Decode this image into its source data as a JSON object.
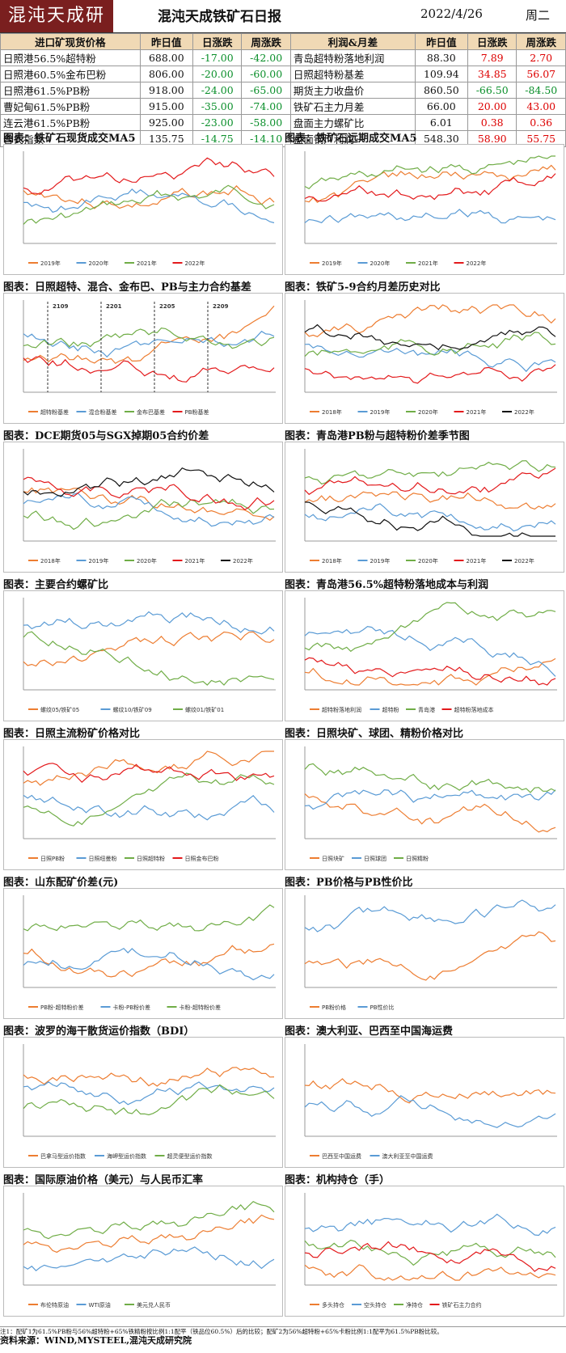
{
  "header": {
    "logo": "混沌天成研究院",
    "title": "混沌天成铁矿石日报",
    "date": "2022/4/26",
    "weekday": "周二"
  },
  "left_table": {
    "headers": [
      "进口矿现货价格",
      "昨日值",
      "日涨跌",
      "周涨跌"
    ],
    "rows": [
      [
        "日照港56.5%超特粉",
        "688.00",
        "-17.00",
        "-42.00"
      ],
      [
        "日照港60.5%金布巴粉",
        "806.00",
        "-20.00",
        "-60.00"
      ],
      [
        "日照港61.5%PB粉",
        "918.00",
        "-24.00",
        "-65.00"
      ],
      [
        "曹妃甸61.5%PB粉",
        "915.00",
        "-35.00",
        "-74.00"
      ],
      [
        "连云港61.5%PB粉",
        "925.00",
        "-23.00",
        "-58.00"
      ],
      [
        "普氏指数",
        "135.75",
        "-14.75",
        "-14.10"
      ]
    ]
  },
  "right_table": {
    "headers": [
      "利润&月差",
      "昨日值",
      "日涨跌",
      "周涨跌"
    ],
    "rows": [
      [
        "青岛超特粉落地利润",
        "88.30",
        "7.89",
        "2.70"
      ],
      [
        "日照超特粉基差",
        "109.94",
        "34.85",
        "56.07"
      ],
      [
        "期货主力收盘价",
        "860.50",
        "-66.50",
        "-84.50"
      ],
      [
        "铁矿石主力月差",
        "66.00",
        "20.00",
        "43.00"
      ],
      [
        "盘面主力螺矿比",
        "6.01",
        "0.38",
        "0.36"
      ],
      [
        "盘面钢厂利润",
        "548.30",
        "58.90",
        "55.75"
      ]
    ]
  },
  "charts": [
    {
      "caption": "图表：铁矿石现货成交MA5",
      "legend": [
        "2019年",
        "2020年",
        "2021年",
        "2022年"
      ]
    },
    {
      "caption": "图表：铁矿石远期成交MA5",
      "legend": [
        "2019年",
        "2020年",
        "2021年",
        "2022年"
      ]
    },
    {
      "caption": "图表：日照超特、混合、金布巴、PB与主力合约基差",
      "legend": [
        "超特粉基差",
        "混合粉基差",
        "金布巴基差",
        "PB粉基差"
      ],
      "annotations": [
        "2109",
        "2201",
        "2205",
        "2209"
      ]
    },
    {
      "caption": "图表：铁矿5-9合约月差历史对比",
      "legend": [
        "2018年",
        "2019年",
        "2020年",
        "2021年",
        "2022年"
      ]
    },
    {
      "caption": "图表：DCE期货05与SGX掉期05合约价差",
      "legend": [
        "2018年",
        "2019年",
        "2020年",
        "2021年",
        "2022年"
      ]
    },
    {
      "caption": "图表：青岛港PB粉与超特粉价差季节图",
      "legend": [
        "2018年",
        "2019年",
        "2020年",
        "2021年",
        "2022年"
      ]
    },
    {
      "caption": "图表：主要合约螺矿比",
      "legend": [
        "螺纹05/铁矿05",
        "螺纹10/铁矿09",
        "螺纹01/铁矿01"
      ]
    },
    {
      "caption": "图表：青岛港56.5%超特粉落地成本与利润",
      "legend": [
        "超特粉落地利润",
        "超特粉",
        "青岛港",
        "超特粉落地成本"
      ]
    },
    {
      "caption": "图表：日照主流粉矿价格对比",
      "legend": [
        "日照PB粉",
        "日照纽曼粉",
        "日照超特粉",
        "日照金布巴粉"
      ]
    },
    {
      "caption": "图表：日照块矿、球团、精粉价格对比",
      "legend": [
        "日照块矿",
        "日照球团",
        "日照精粉"
      ]
    },
    {
      "caption": "图表：山东配矿价差(元)",
      "legend": [
        "PB粉-超特粉价差",
        "卡粉-PB粉价差",
        "卡粉-超特粉价差"
      ]
    },
    {
      "caption": "图表：PB价格与PB性价比",
      "legend": [
        "PB粉价格",
        "PB性价比"
      ]
    },
    {
      "caption": "图表：波罗的海干散货运价指数（BDI）",
      "legend": [
        "巴拿马型运价指数",
        "海岬型运价指数",
        "超灵便型运价指数"
      ]
    },
    {
      "caption": "图表：澳大利亚、巴西至中国海运费",
      "legend": [
        "巴西至中国运费",
        "澳大利亚至中国运费"
      ]
    },
    {
      "caption": "图表：国际原油价格（美元）与人民币汇率",
      "legend": [
        "布伦特原油",
        "WTI原油",
        "美元兑人民币"
      ]
    },
    {
      "caption": "图表：机构持仓（手）",
      "legend": [
        "多头持仓",
        "空头持仓",
        "净持仓",
        "铁矿石主力合约"
      ]
    }
  ],
  "footer": {
    "note": "注1：配矿1为61.5%PB粉与56%超特粉+65%铁精粉按比例1:1配平（铁品位60.5%）后的比较；配矿2为56%超特粉+65%卡粉比例1:1配平为61.5%PB粉比较。",
    "source": "资料来源：WIND,MYSTEEL,混沌天成研究院"
  },
  "colors": {
    "header_fill": "#f0d9b5",
    "negative": "#0a8f2a",
    "positive": "#d00000",
    "series": [
      "#ed7d31",
      "#5a9bd5",
      "#70ad47",
      "#e31a1c",
      "#111111",
      "#a5a5a5"
    ]
  }
}
